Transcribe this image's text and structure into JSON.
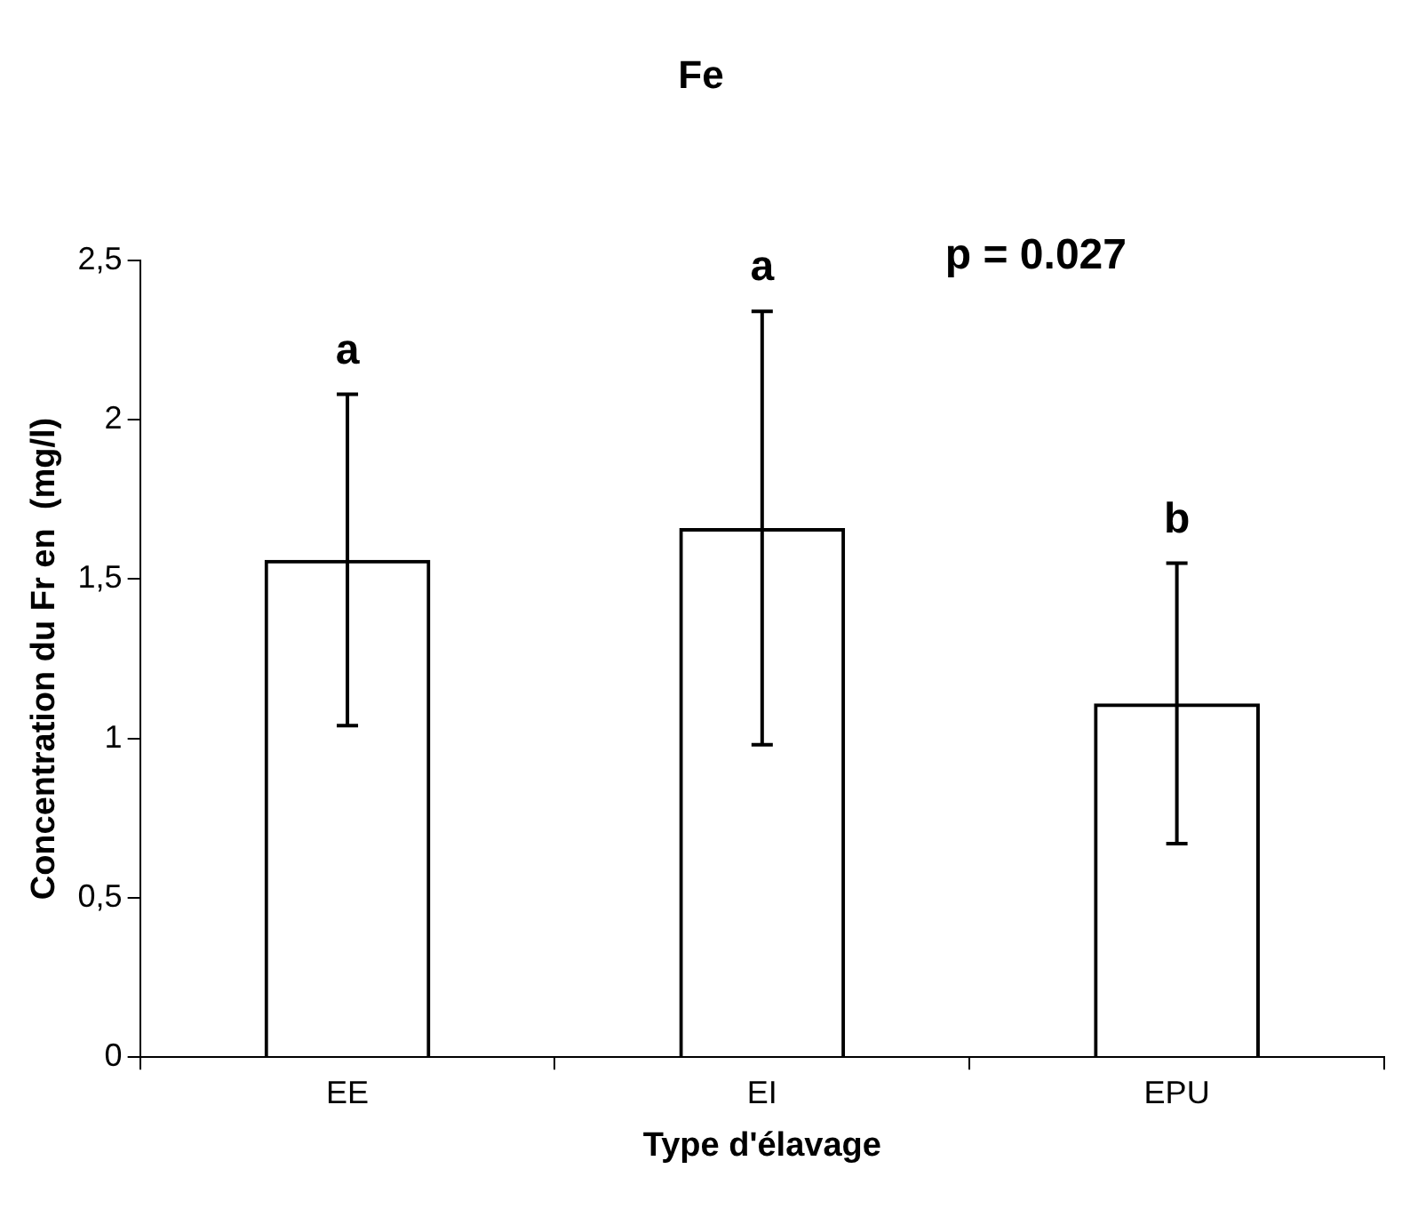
{
  "chart_data": {
    "type": "bar",
    "title": "Fe",
    "xlabel": "Type d'élavage",
    "ylabel": "Concentration du Fr en  (mg/l)",
    "categories": [
      "EE",
      "EI",
      "EPU"
    ],
    "series": [
      {
        "color": "#000000",
        "values": [
          1.56,
          1.66,
          1.11
        ],
        "errors": [
          0.52,
          0.68,
          0.44
        ]
      }
    ],
    "ylim": [
      0,
      2.5
    ],
    "yticks": [
      0,
      {
        "value": 0.5,
        "label": "0,5"
      },
      1,
      {
        "value": 1.5,
        "label": "1,5"
      },
      2,
      {
        "value": 2.5,
        "label": "2,5"
      }
    ],
    "grid": false,
    "legend": false,
    "annotations": [
      {
        "text": "a",
        "x": "EE",
        "y": 2.08
      },
      {
        "text": "a",
        "x": "EI",
        "y": 2.34
      },
      {
        "text": "b",
        "x": "EPU",
        "y": 1.55
      },
      "p = 0.027"
    ]
  }
}
